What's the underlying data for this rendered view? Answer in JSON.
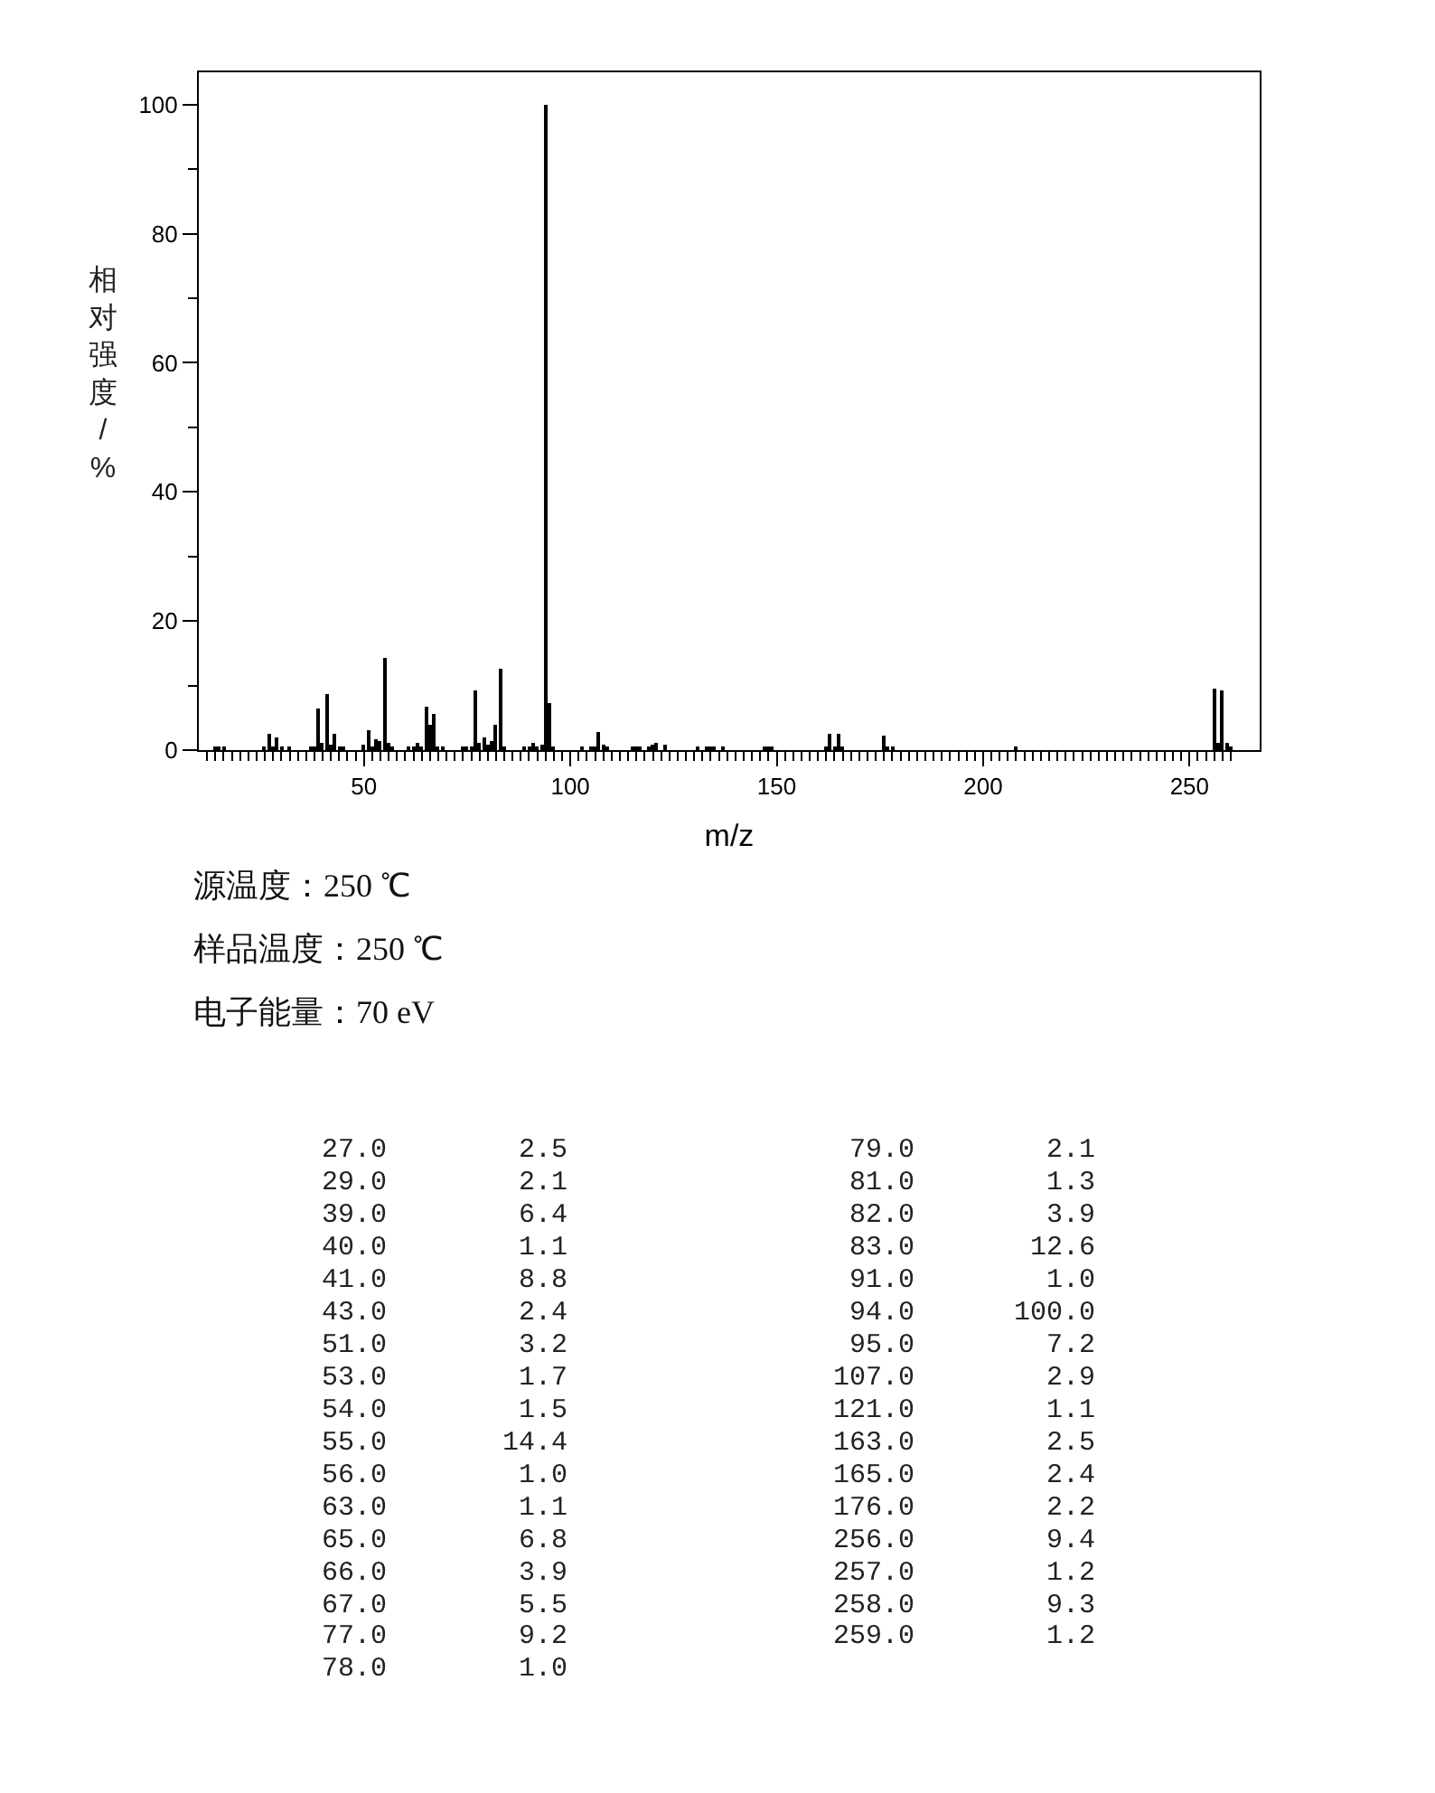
{
  "chart_data": [
    {
      "type": "bar",
      "xlabel": "m/z",
      "ylabel": "相对强度/%",
      "color": "#000000",
      "x": [
        14,
        15,
        16,
        26,
        27,
        28,
        29,
        30,
        32,
        37,
        38,
        39,
        40,
        41,
        42,
        43,
        44,
        45,
        50,
        51,
        52,
        53,
        54,
        55,
        56,
        57,
        61,
        62,
        63,
        64,
        65,
        66,
        67,
        68,
        69,
        74,
        75,
        76,
        77,
        78,
        79,
        80,
        81,
        82,
        83,
        84,
        89,
        90,
        91,
        92,
        93,
        94,
        95,
        96,
        103,
        105,
        106,
        107,
        108,
        109,
        115,
        116,
        117,
        119,
        120,
        121,
        123,
        131,
        133,
        134,
        135,
        137,
        147,
        148,
        149,
        162,
        163,
        164,
        165,
        166,
        176,
        177,
        178,
        208,
        256,
        257,
        258,
        259,
        260
      ],
      "values": [
        0.4,
        0.5,
        0.4,
        0.5,
        2.5,
        0.7,
        2.1,
        0.4,
        0.3,
        0.4,
        0.7,
        6.4,
        1.1,
        8.8,
        0.8,
        2.4,
        0.4,
        0.5,
        0.9,
        3.2,
        0.6,
        1.7,
        1.5,
        14.4,
        1.0,
        0.6,
        0.3,
        0.4,
        1.1,
        0.6,
        6.8,
        3.9,
        5.5,
        0.6,
        0.5,
        0.4,
        0.4,
        0.6,
        9.2,
        1.0,
        2.1,
        0.8,
        1.3,
        3.9,
        12.6,
        0.6,
        0.4,
        0.4,
        1.0,
        0.5,
        0.9,
        100.0,
        7.2,
        0.6,
        0.4,
        0.5,
        0.6,
        2.9,
        0.8,
        0.4,
        0.5,
        0.4,
        0.4,
        0.6,
        0.8,
        1.1,
        0.8,
        0.4,
        0.4,
        0.4,
        0.4,
        0.3,
        0.4,
        0.5,
        0.4,
        0.6,
        2.5,
        0.5,
        2.4,
        0.3,
        2.2,
        0.6,
        0.4,
        0.5,
        9.4,
        1.2,
        9.3,
        1.2,
        0.4
      ],
      "xlim": [
        10,
        267
      ],
      "ylim": [
        0,
        105
      ],
      "xticks": [
        {
          "value": 12,
          "label": null
        },
        {
          "value": 14,
          "label": null
        },
        {
          "value": 16,
          "label": null
        },
        {
          "value": 18,
          "label": null
        },
        {
          "value": 20,
          "label": null
        },
        {
          "value": 22,
          "label": null
        },
        {
          "value": 24,
          "label": null
        },
        {
          "value": 26,
          "label": null
        },
        {
          "value": 28,
          "label": null
        },
        {
          "value": 30,
          "label": null
        },
        {
          "value": 32,
          "label": null
        },
        {
          "value": 34,
          "label": null
        },
        {
          "value": 36,
          "label": null
        },
        {
          "value": 38,
          "label": null
        },
        {
          "value": 40,
          "label": null
        },
        {
          "value": 42,
          "label": null
        },
        {
          "value": 44,
          "label": null
        },
        {
          "value": 46,
          "label": null
        },
        {
          "value": 48,
          "label": null
        },
        50,
        {
          "value": 52,
          "label": null
        },
        {
          "value": 54,
          "label": null
        },
        {
          "value": 56,
          "label": null
        },
        {
          "value": 58,
          "label": null
        },
        {
          "value": 60,
          "label": null
        },
        {
          "value": 62,
          "label": null
        },
        {
          "value": 64,
          "label": null
        },
        {
          "value": 66,
          "label": null
        },
        {
          "value": 68,
          "label": null
        },
        {
          "value": 70,
          "label": null
        },
        {
          "value": 72,
          "label": null
        },
        {
          "value": 74,
          "label": null
        },
        {
          "value": 76,
          "label": null
        },
        {
          "value": 78,
          "label": null
        },
        {
          "value": 80,
          "label": null
        },
        {
          "value": 82,
          "label": null
        },
        {
          "value": 84,
          "label": null
        },
        {
          "value": 86,
          "label": null
        },
        {
          "value": 88,
          "label": null
        },
        {
          "value": 90,
          "label": null
        },
        {
          "value": 92,
          "label": null
        },
        {
          "value": 94,
          "label": null
        },
        {
          "value": 96,
          "label": null
        },
        {
          "value": 98,
          "label": null
        },
        100,
        {
          "value": 102,
          "label": null
        },
        {
          "value": 104,
          "label": null
        },
        {
          "value": 106,
          "label": null
        },
        {
          "value": 108,
          "label": null
        },
        {
          "value": 110,
          "label": null
        },
        {
          "value": 112,
          "label": null
        },
        {
          "value": 114,
          "label": null
        },
        {
          "value": 116,
          "label": null
        },
        {
          "value": 118,
          "label": null
        },
        {
          "value": 120,
          "label": null
        },
        {
          "value": 122,
          "label": null
        },
        {
          "value": 124,
          "label": null
        },
        {
          "value": 126,
          "label": null
        },
        {
          "value": 128,
          "label": null
        },
        {
          "value": 130,
          "label": null
        },
        {
          "value": 132,
          "label": null
        },
        {
          "value": 134,
          "label": null
        },
        {
          "value": 136,
          "label": null
        },
        {
          "value": 138,
          "label": null
        },
        {
          "value": 140,
          "label": null
        },
        {
          "value": 142,
          "label": null
        },
        {
          "value": 144,
          "label": null
        },
        {
          "value": 146,
          "label": null
        },
        {
          "value": 148,
          "label": null
        },
        150,
        {
          "value": 152,
          "label": null
        },
        {
          "value": 154,
          "label": null
        },
        {
          "value": 156,
          "label": null
        },
        {
          "value": 158,
          "label": null
        },
        {
          "value": 160,
          "label": null
        },
        {
          "value": 162,
          "label": null
        },
        {
          "value": 164,
          "label": null
        },
        {
          "value": 166,
          "label": null
        },
        {
          "value": 168,
          "label": null
        },
        {
          "value": 170,
          "label": null
        },
        {
          "value": 172,
          "label": null
        },
        {
          "value": 174,
          "label": null
        },
        {
          "value": 176,
          "label": null
        },
        {
          "value": 178,
          "label": null
        },
        {
          "value": 180,
          "label": null
        },
        {
          "value": 182,
          "label": null
        },
        {
          "value": 184,
          "label": null
        },
        {
          "value": 186,
          "label": null
        },
        {
          "value": 188,
          "label": null
        },
        {
          "value": 190,
          "label": null
        },
        {
          "value": 192,
          "label": null
        },
        {
          "value": 194,
          "label": null
        },
        {
          "value": 196,
          "label": null
        },
        {
          "value": 198,
          "label": null
        },
        200,
        {
          "value": 202,
          "label": null
        },
        {
          "value": 204,
          "label": null
        },
        {
          "value": 206,
          "label": null
        },
        {
          "value": 208,
          "label": null
        },
        {
          "value": 210,
          "label": null
        },
        {
          "value": 212,
          "label": null
        },
        {
          "value": 214,
          "label": null
        },
        {
          "value": 216,
          "label": null
        },
        {
          "value": 218,
          "label": null
        },
        {
          "value": 220,
          "label": null
        },
        {
          "value": 222,
          "label": null
        },
        {
          "value": 224,
          "label": null
        },
        {
          "value": 226,
          "label": null
        },
        {
          "value": 228,
          "label": null
        },
        {
          "value": 230,
          "label": null
        },
        {
          "value": 232,
          "label": null
        },
        {
          "value": 234,
          "label": null
        },
        {
          "value": 236,
          "label": null
        },
        {
          "value": 238,
          "label": null
        },
        {
          "value": 240,
          "label": null
        },
        {
          "value": 242,
          "label": null
        },
        {
          "value": 244,
          "label": null
        },
        {
          "value": 246,
          "label": null
        },
        {
          "value": 248,
          "label": null
        },
        250,
        {
          "value": 252,
          "label": null
        },
        {
          "value": 254,
          "label": null
        },
        {
          "value": 256,
          "label": null
        },
        {
          "value": 258,
          "label": null
        },
        {
          "value": 260,
          "label": null
        }
      ],
      "yticks": [
        0,
        {
          "value": 10,
          "label": null
        },
        20,
        {
          "value": 30,
          "label": null
        },
        40,
        {
          "value": 50,
          "label": null
        },
        60,
        {
          "value": 70,
          "label": null
        },
        80,
        {
          "value": 90,
          "label": null
        },
        100
      ],
      "annotations": [
        "源温度：250 ℃",
        "样品温度：250 ℃",
        "电子能量：70 eV"
      ]
    },
    {
      "type": "other",
      "annotations": [
        "27.0",
        "2.5",
        "29.0",
        "2.1",
        "39.0",
        "6.4",
        "40.0",
        "1.1",
        "41.0",
        "8.8",
        "43.0",
        "2.4",
        "51.0",
        "3.2",
        "53.0",
        "1.7",
        "54.0",
        "1.5",
        "55.0",
        "14.4",
        "56.0",
        "1.0",
        "63.0",
        "1.1",
        "65.0",
        "6.8",
        "66.0",
        "3.9",
        "67.0",
        "5.5",
        "77.0",
        "9.2",
        "78.0",
        "1.0",
        "79.0",
        "2.1",
        "81.0",
        "1.3",
        "82.0",
        "3.9",
        "83.0",
        "12.6",
        "91.0",
        "1.0",
        "94.0",
        "100.0",
        "95.0",
        "7.2",
        "107.0",
        "2.9",
        "121.0",
        "1.1",
        "163.0",
        "2.5",
        "165.0",
        "2.4",
        "176.0",
        "2.2",
        "256.0",
        "9.4",
        "257.0",
        "1.2",
        "258.0",
        "9.3",
        "259.0",
        "1.2"
      ]
    }
  ]
}
